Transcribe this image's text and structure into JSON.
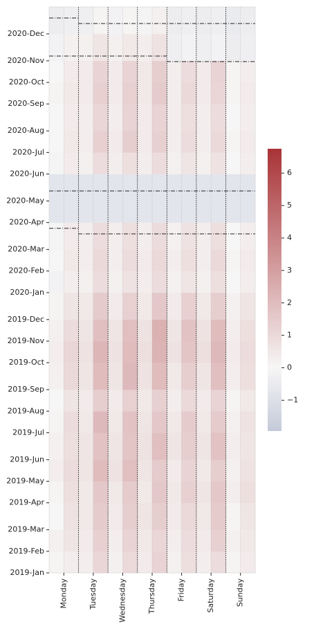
{
  "chart_data": {
    "type": "heatmap",
    "categories": [
      "Monday",
      "Tuesday",
      "Wednesday",
      "Thursday",
      "Friday",
      "Saturday",
      "Sunday"
    ],
    "slots_per_category": 2,
    "y_bins": [
      0,
      4,
      8,
      13,
      17,
      21,
      26,
      30,
      34,
      39,
      43,
      47,
      52,
      56,
      60,
      65,
      69,
      74,
      78,
      82,
      87,
      91,
      95,
      100,
      105
    ],
    "ylim": [
      0,
      105
    ],
    "yticks": [
      {
        "value": 0,
        "label": "2019-Jan"
      },
      {
        "value": 4,
        "label": "2019-Feb"
      },
      {
        "value": 8,
        "label": "2019-Mar"
      },
      {
        "value": 13,
        "label": "2019-Apr"
      },
      {
        "value": 17,
        "label": "2019-May"
      },
      {
        "value": 21,
        "label": "2019-Jun"
      },
      {
        "value": 26,
        "label": "2019-Jul"
      },
      {
        "value": 30,
        "label": "2019-Aug"
      },
      {
        "value": 34,
        "label": "2019-Sep"
      },
      {
        "value": 39,
        "label": "2019-Oct"
      },
      {
        "value": 43,
        "label": "2019-Nov"
      },
      {
        "value": 47,
        "label": "2019-Dec"
      },
      {
        "value": 52,
        "label": "2020-Jan"
      },
      {
        "value": 56,
        "label": "2020-Feb"
      },
      {
        "value": 60,
        "label": "2020-Mar"
      },
      {
        "value": 65,
        "label": "2020-Apr"
      },
      {
        "value": 69,
        "label": "2020-May"
      },
      {
        "value": 74,
        "label": "2020-Jun"
      },
      {
        "value": 78,
        "label": "2020-Jul"
      },
      {
        "value": 82,
        "label": "2020-Aug"
      },
      {
        "value": 87,
        "label": "2020-Sep"
      },
      {
        "value": 91,
        "label": "2020-Oct"
      },
      {
        "value": 95,
        "label": "2020-Nov"
      },
      {
        "value": 100,
        "label": "2020-Dec"
      }
    ],
    "values": [
      [
        0.1,
        0.3,
        0.3,
        1.1,
        0.2,
        1.0,
        0.4,
        1.2,
        0.2,
        0.8,
        0.3,
        0.9,
        0.1,
        0.4
      ],
      [
        0.2,
        0.6,
        0.4,
        1.3,
        0.3,
        1.2,
        0.5,
        1.1,
        0.3,
        0.9,
        0.4,
        1.3,
        0.2,
        0.5
      ],
      [
        0.0,
        0.7,
        0.5,
        1.5,
        0.4,
        1.4,
        0.6,
        1.4,
        0.4,
        1.0,
        0.5,
        1.5,
        0.1,
        0.6
      ],
      [
        0.1,
        0.8,
        0.5,
        1.6,
        0.5,
        1.5,
        0.5,
        1.6,
        0.5,
        1.3,
        0.6,
        1.6,
        0.3,
        0.8
      ],
      [
        0.3,
        0.9,
        0.6,
        2.0,
        0.7,
        1.9,
        0.6,
        1.5,
        0.4,
        1.2,
        0.5,
        1.4,
        0.2,
        0.7
      ],
      [
        0.2,
        0.8,
        0.6,
        1.8,
        0.6,
        1.7,
        0.7,
        1.9,
        0.6,
        1.4,
        0.6,
        1.8,
        0.3,
        0.6
      ],
      [
        0.1,
        0.9,
        0.5,
        2.1,
        0.5,
        1.8,
        0.6,
        1.6,
        0.5,
        1.5,
        0.5,
        1.5,
        0.2,
        0.7
      ],
      [
        0.0,
        0.6,
        0.4,
        1.4,
        0.4,
        1.3,
        0.5,
        1.3,
        0.3,
        1.0,
        0.4,
        1.2,
        0.1,
        0.5
      ],
      [
        0.2,
        1.0,
        0.6,
        2.0,
        0.6,
        2.1,
        0.7,
        2.0,
        0.5,
        1.4,
        0.6,
        1.9,
        0.3,
        0.8
      ],
      [
        0.3,
        1.1,
        0.7,
        2.2,
        0.7,
        2.0,
        0.8,
        2.3,
        0.7,
        1.7,
        0.8,
        2.1,
        0.4,
        0.9
      ],
      [
        0.2,
        0.9,
        0.6,
        1.9,
        0.6,
        1.9,
        0.7,
        2.4,
        0.6,
        1.8,
        0.7,
        2.0,
        0.3,
        0.8
      ],
      [
        0.1,
        0.6,
        0.5,
        1.5,
        0.4,
        1.3,
        0.5,
        1.6,
        0.4,
        1.3,
        0.5,
        1.4,
        0.2,
        0.6
      ],
      [
        -0.2,
        0.3,
        0.2,
        0.9,
        0.2,
        0.7,
        0.3,
        0.9,
        0.2,
        0.6,
        0.2,
        0.8,
        0.0,
        0.3
      ],
      [
        0.0,
        0.5,
        0.3,
        1.0,
        0.3,
        0.9,
        0.4,
        1.0,
        0.3,
        0.8,
        0.3,
        1.0,
        0.1,
        0.4
      ],
      [
        -0.1,
        0.4,
        0.3,
        0.9,
        0.3,
        0.8,
        0.3,
        0.9,
        0.2,
        0.7,
        0.3,
        0.8,
        0.0,
        0.3
      ],
      [
        null,
        null,
        null,
        null,
        null,
        null,
        null,
        null,
        null,
        null,
        null,
        null,
        null,
        null
      ],
      [
        null,
        null,
        null,
        null,
        null,
        null,
        null,
        null,
        null,
        null,
        null,
        null,
        null,
        null
      ],
      [
        -0.1,
        0.4,
        0.2,
        0.9,
        0.3,
        0.8,
        0.3,
        0.9,
        0.2,
        0.6,
        0.2,
        0.7,
        0.0,
        0.3
      ],
      [
        0.0,
        0.5,
        0.3,
        1.3,
        0.4,
        1.4,
        0.4,
        1.3,
        0.3,
        0.9,
        0.3,
        1.0,
        0.1,
        0.4
      ],
      [
        0.0,
        0.4,
        0.3,
        1.1,
        0.3,
        1.2,
        0.4,
        1.2,
        0.3,
        0.8,
        0.3,
        0.9,
        0.0,
        0.3
      ],
      [
        0.1,
        0.5,
        0.4,
        1.3,
        0.4,
        1.3,
        0.5,
        1.5,
        0.3,
        1.0,
        0.4,
        1.1,
        0.1,
        0.4
      ],
      [
        0.0,
        0.4,
        0.4,
        1.2,
        0.4,
        1.2,
        0.5,
        1.4,
        0.3,
        0.9,
        0.4,
        1.2,
        0.1,
        0.3
      ],
      [
        -0.2,
        0.2,
        0.2,
        0.6,
        0.2,
        0.5,
        0.3,
        0.7,
        -0.3,
        -0.2,
        -0.3,
        -0.2,
        -0.4,
        -0.3
      ],
      [
        -0.4,
        -0.3,
        -0.3,
        0.1,
        -0.2,
        0.1,
        -0.1,
        0.2,
        -0.4,
        -0.3,
        -0.4,
        -0.3,
        -0.5,
        -0.4
      ]
    ],
    "missing_color": "#e3e5ec",
    "colormap": {
      "min_color": "#c4cad9",
      "zero_color": "#f7f6f6",
      "max_color": "#a83337"
    },
    "vlim": [
      -1.95,
      6.75
    ],
    "colorbar_ticks": [
      {
        "value": -1,
        "label": "−1"
      },
      0,
      1,
      2,
      3,
      4,
      5,
      6
    ]
  }
}
